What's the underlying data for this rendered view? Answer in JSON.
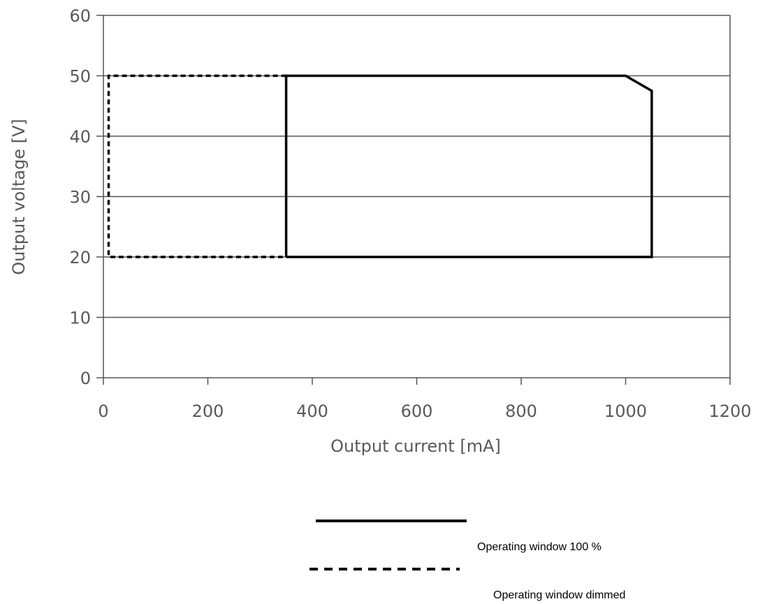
{
  "chart_data": {
    "type": "line",
    "xlabel": "Output current [mA]",
    "ylabel": "Output voltage [V]",
    "xlim": [
      0,
      1200
    ],
    "ylim": [
      0,
      60
    ],
    "xticks": [
      0,
      200,
      400,
      600,
      800,
      1000,
      1200
    ],
    "yticks": [
      0,
      10,
      20,
      30,
      40,
      50,
      60
    ],
    "grid": "horizontal",
    "legend_position": "bottom",
    "series": [
      {
        "name": "Operating window 100 %",
        "style": "solid",
        "color": "#000000",
        "points": [
          [
            350,
            20
          ],
          [
            350,
            50
          ],
          [
            1000,
            50
          ],
          [
            1050,
            47.5
          ],
          [
            1050,
            20
          ],
          [
            350,
            20
          ]
        ]
      },
      {
        "name": "Operating window dimmed",
        "style": "dashed",
        "color": "#000000",
        "points": [
          [
            350,
            50
          ],
          [
            10,
            50
          ],
          [
            10,
            20
          ],
          [
            350,
            20
          ]
        ]
      }
    ]
  }
}
